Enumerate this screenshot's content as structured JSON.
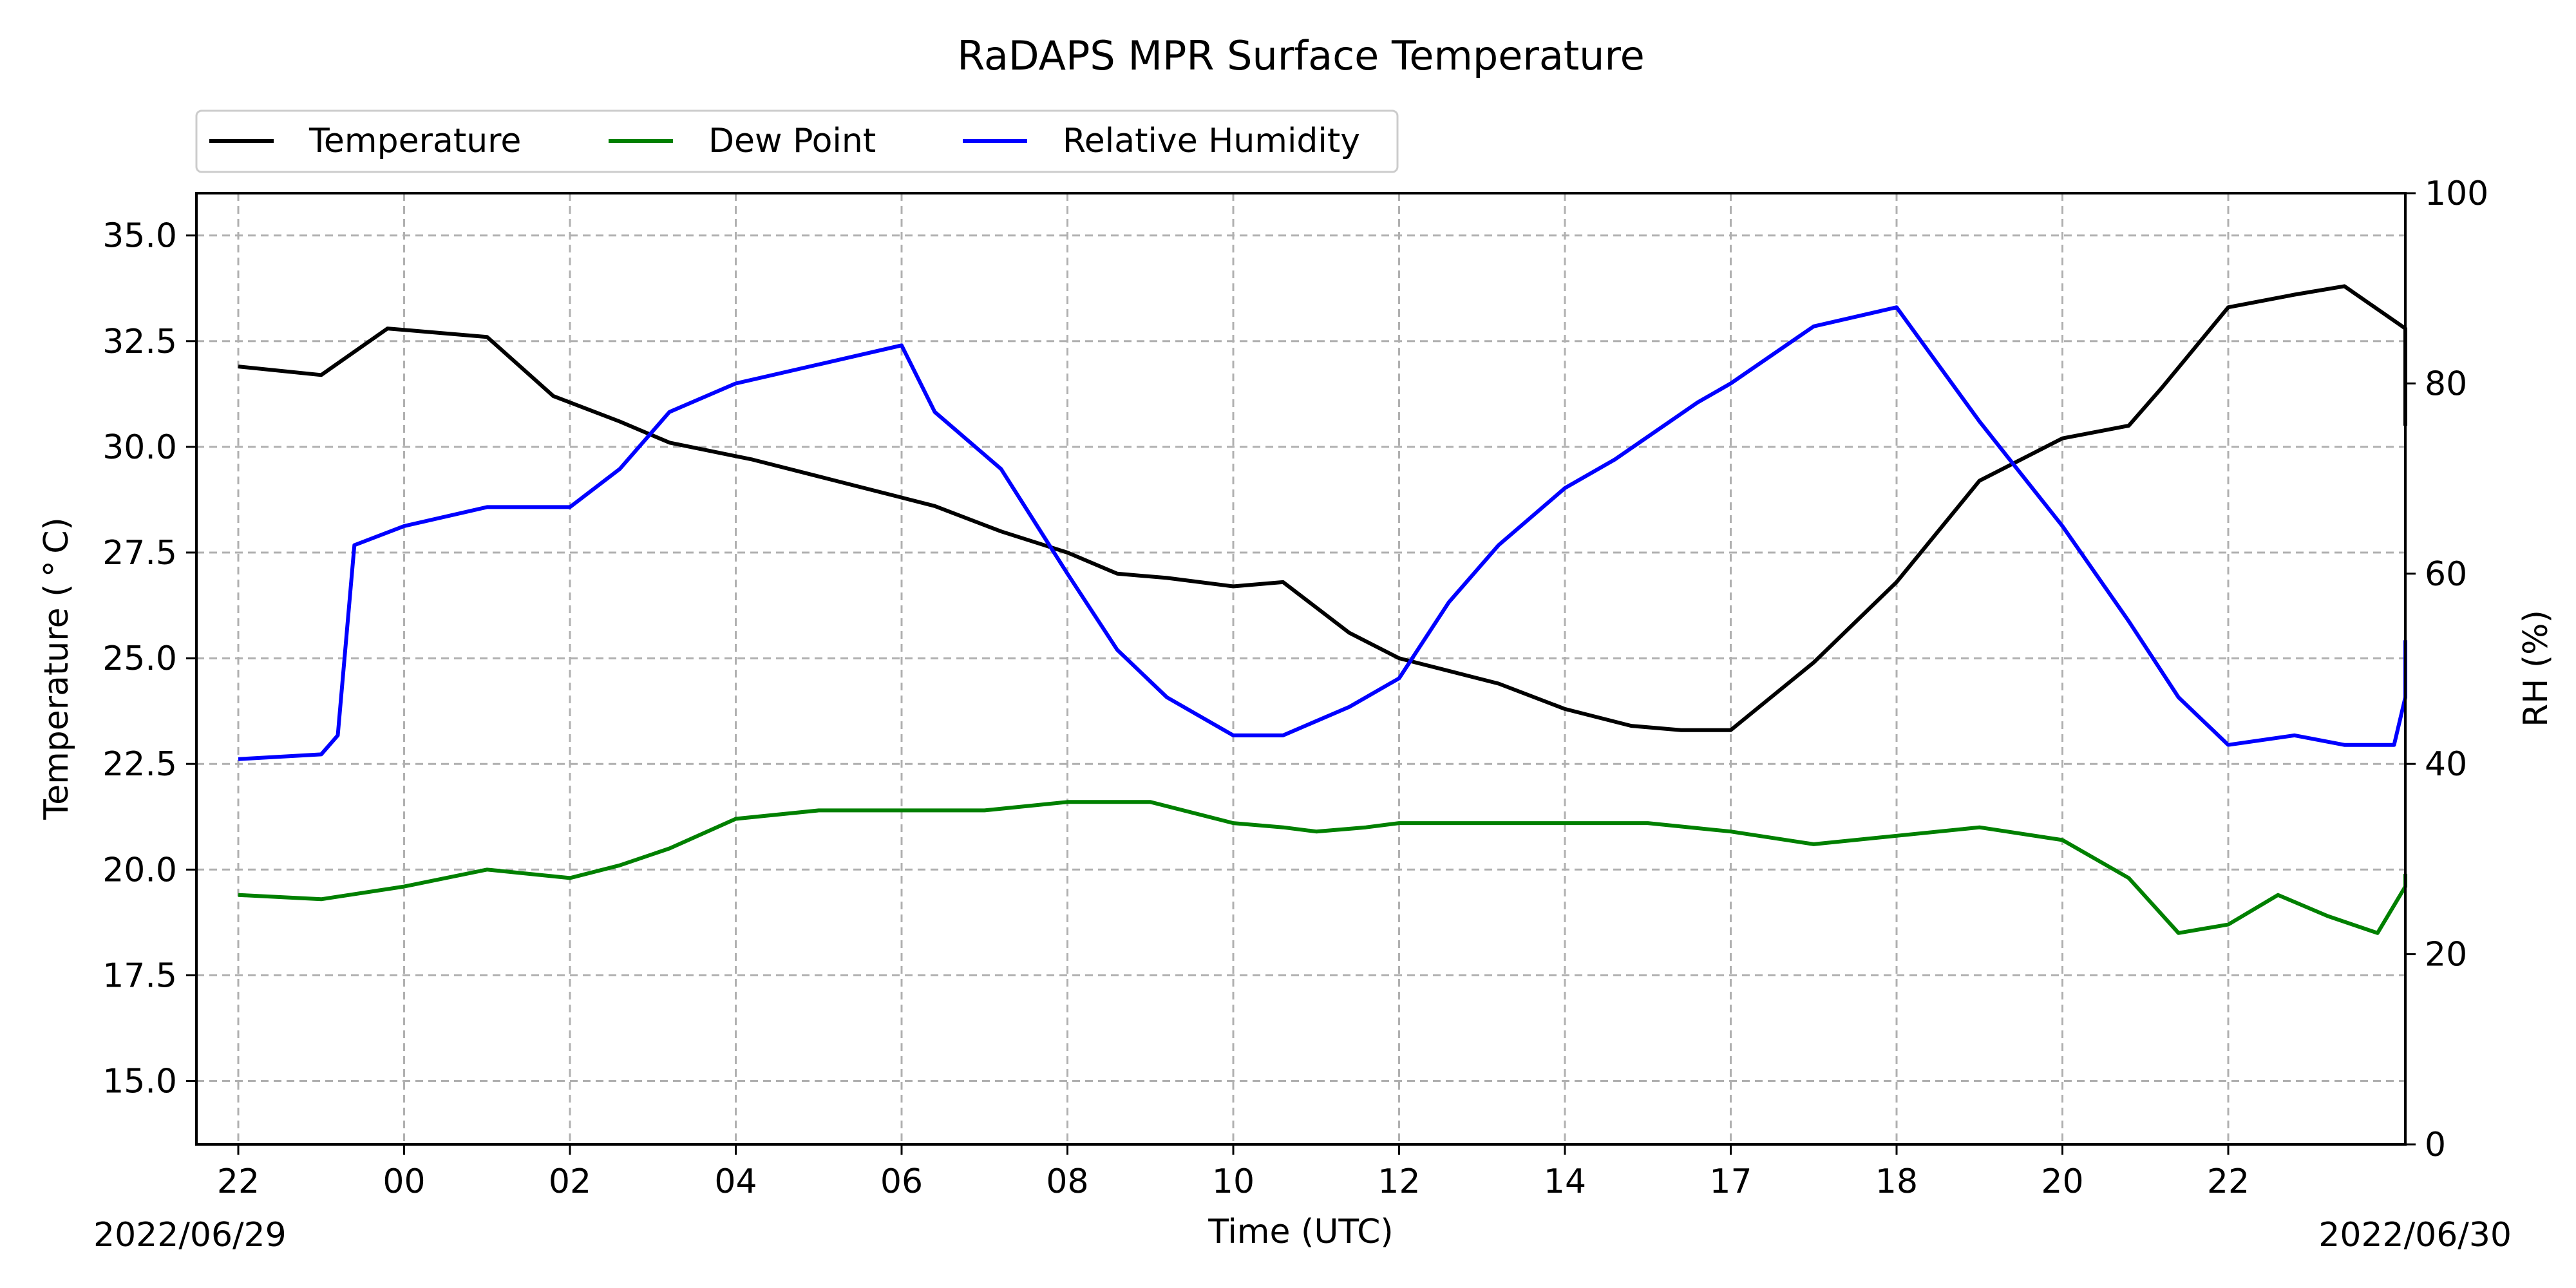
{
  "chart_data": {
    "type": "line",
    "title": "RaDAPS MPR Surface Temperature",
    "xlabel": "Time (UTC)",
    "ylabel_left": "Temperature ($^\\circ$C)",
    "ylabel_left_display": "Temperature ( ° C)",
    "ylabel_right": "RH (%)",
    "date_start_label": "2022/06/29",
    "date_end_label": "2022/06/30",
    "grid": true,
    "legend_position": "top-left",
    "x_ticks": [
      "22",
      "00",
      "02",
      "04",
      "06",
      "08",
      "10",
      "12",
      "14",
      "17",
      "18",
      "20",
      "22"
    ],
    "y_left_ticks": [
      "15.0",
      "17.5",
      "20.0",
      "22.5",
      "25.0",
      "27.5",
      "30.0",
      "32.5",
      "35.0"
    ],
    "y_left_tick_values": [
      15.0,
      17.5,
      20.0,
      22.5,
      25.0,
      27.5,
      30.0,
      32.5,
      35.0
    ],
    "y_left_range": [
      13.5,
      36.0
    ],
    "y_right_ticks": [
      "0",
      "20",
      "40",
      "60",
      "80",
      "100"
    ],
    "y_right_tick_values": [
      0,
      20,
      40,
      60,
      80,
      100
    ],
    "y_right_range": [
      0,
      100
    ],
    "series": [
      {
        "name": "Temperature",
        "axis": "left",
        "color": "#000000",
        "x_index": [
          0,
          0.5,
          0.9,
          1.5,
          1.9,
          2.3,
          2.6,
          3.1,
          3.6,
          4.0,
          4.2,
          4.6,
          5.0,
          5.3,
          5.6,
          6.0,
          6.3,
          6.7,
          7.0,
          7.3,
          7.6,
          8.0,
          8.4,
          8.7,
          9.0,
          9.5,
          10.0,
          10.5,
          11.0,
          11.4,
          11.6,
          12.0,
          12.4,
          12.7,
          13.1,
          13.4
        ],
        "values": [
          31.9,
          31.7,
          32.8,
          32.6,
          31.2,
          30.6,
          30.1,
          29.7,
          29.2,
          28.8,
          28.6,
          28.0,
          27.5,
          27.0,
          26.9,
          26.7,
          26.8,
          25.6,
          25.0,
          24.7,
          24.4,
          23.8,
          23.4,
          23.3,
          23.3,
          24.9,
          26.8,
          29.2,
          30.2,
          30.5,
          31.4,
          33.3,
          33.6,
          33.8,
          32.8,
          30.5
        ]
      },
      {
        "name": "Dew Point",
        "axis": "left",
        "color": "#008000",
        "x_index": [
          0,
          0.5,
          1.0,
          1.5,
          2.0,
          2.3,
          2.6,
          3.0,
          3.5,
          4.0,
          4.5,
          5.0,
          5.2,
          5.5,
          6.0,
          6.3,
          6.5,
          6.8,
          7.0,
          7.3,
          7.6,
          8.0,
          8.5,
          9.0,
          9.5,
          10.0,
          10.5,
          11.0,
          11.4,
          11.7,
          12.0,
          12.3,
          12.6,
          12.9,
          13.2,
          13.4
        ],
        "values": [
          19.4,
          19.3,
          19.6,
          20.0,
          19.8,
          20.1,
          20.5,
          21.2,
          21.4,
          21.4,
          21.4,
          21.6,
          21.6,
          21.6,
          21.1,
          21.0,
          20.9,
          21.0,
          21.1,
          21.1,
          21.1,
          21.1,
          21.1,
          20.9,
          20.6,
          20.8,
          21.0,
          20.7,
          19.8,
          18.5,
          18.7,
          19.4,
          18.9,
          18.5,
          19.6,
          19.9
        ]
      },
      {
        "name": "Relative Humidity",
        "axis": "right",
        "color": "#0000ff",
        "x_index": [
          0,
          0.5,
          0.6,
          0.7,
          1.0,
          1.5,
          2.0,
          2.3,
          2.6,
          3.0,
          3.5,
          4.0,
          4.2,
          4.6,
          5.0,
          5.3,
          5.6,
          6.0,
          6.3,
          6.7,
          7.0,
          7.3,
          7.6,
          8.0,
          8.3,
          8.8,
          9.0,
          9.5,
          10.0,
          10.5,
          11.0,
          11.4,
          11.7,
          12.0,
          12.4,
          12.7,
          13.0,
          13.2,
          13.4
        ],
        "values": [
          40.5,
          41.0,
          43.0,
          63.0,
          65.0,
          67.0,
          67.0,
          71.0,
          77.0,
          80.0,
          82.0,
          84.0,
          77.0,
          71.0,
          60.0,
          52.0,
          47.0,
          43.0,
          43.0,
          46.0,
          49.0,
          57.0,
          63.0,
          69.0,
          72.0,
          78.0,
          80.0,
          86.0,
          88.0,
          76.0,
          65.0,
          55.0,
          47.0,
          42.0,
          43.0,
          42.0,
          42.0,
          47.0,
          53.0
        ]
      }
    ]
  }
}
